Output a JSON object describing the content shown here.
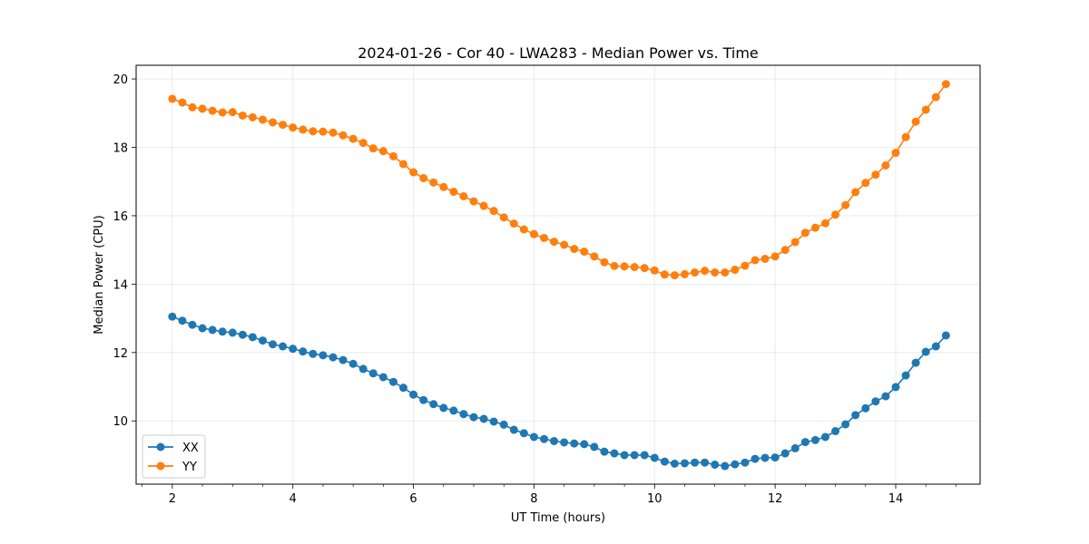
{
  "chart_data": {
    "type": "line",
    "title": "2024-01-26 - Cor 40 - LWA283 - Median Power vs. Time",
    "xlabel": "UT Time (hours)",
    "ylabel": "Median Power (CPU)",
    "xlim": [
      1.4,
      15.4
    ],
    "ylim": [
      8.15,
      20.4
    ],
    "xticks": [
      2,
      4,
      6,
      8,
      10,
      12,
      14
    ],
    "yticks": [
      10,
      12,
      14,
      16,
      18,
      20
    ],
    "grid": true,
    "legend_position": "lower-left",
    "x": [
      2.0,
      2.167,
      2.333,
      2.5,
      2.667,
      2.833,
      3.0,
      3.167,
      3.333,
      3.5,
      3.667,
      3.833,
      4.0,
      4.167,
      4.333,
      4.5,
      4.667,
      4.833,
      5.0,
      5.167,
      5.333,
      5.5,
      5.667,
      5.833,
      6.0,
      6.167,
      6.333,
      6.5,
      6.667,
      6.833,
      7.0,
      7.167,
      7.333,
      7.5,
      7.667,
      7.833,
      8.0,
      8.167,
      8.333,
      8.5,
      8.667,
      8.833,
      9.0,
      9.167,
      9.333,
      9.5,
      9.667,
      9.833,
      10.0,
      10.167,
      10.333,
      10.5,
      10.667,
      10.833,
      11.0,
      11.167,
      11.333,
      11.5,
      11.667,
      11.833,
      12.0,
      12.167,
      12.333,
      12.5,
      12.667,
      12.833,
      13.0,
      13.167,
      13.333,
      13.5,
      13.667,
      13.833,
      14.0,
      14.167,
      14.333,
      14.5,
      14.667,
      14.833
    ],
    "series": [
      {
        "name": "XX",
        "color": "#1f77b4",
        "values": [
          13.05,
          12.93,
          12.81,
          12.71,
          12.66,
          12.61,
          12.58,
          12.52,
          12.45,
          12.35,
          12.24,
          12.18,
          12.11,
          12.03,
          11.96,
          11.92,
          11.86,
          11.78,
          11.67,
          11.52,
          11.39,
          11.28,
          11.14,
          10.97,
          10.77,
          10.61,
          10.49,
          10.38,
          10.3,
          10.2,
          10.11,
          10.06,
          9.98,
          9.89,
          9.74,
          9.64,
          9.53,
          9.47,
          9.41,
          9.37,
          9.34,
          9.32,
          9.24,
          9.1,
          9.05,
          9.0,
          9.0,
          9.0,
          8.92,
          8.81,
          8.75,
          8.76,
          8.78,
          8.78,
          8.72,
          8.68,
          8.73,
          8.78,
          8.89,
          8.92,
          8.93,
          9.05,
          9.2,
          9.38,
          9.44,
          9.53,
          9.7,
          9.9,
          10.17,
          10.37,
          10.57,
          10.72,
          10.99,
          11.33,
          11.7,
          12.02,
          12.18,
          12.5
        ]
      },
      {
        "name": "YY",
        "color": "#ff7f0e",
        "values": [
          19.42,
          19.31,
          19.17,
          19.13,
          19.07,
          19.02,
          19.03,
          18.93,
          18.88,
          18.81,
          18.73,
          18.66,
          18.58,
          18.52,
          18.47,
          18.46,
          18.43,
          18.35,
          18.25,
          18.13,
          17.97,
          17.89,
          17.74,
          17.51,
          17.27,
          17.1,
          16.97,
          16.84,
          16.7,
          16.57,
          16.42,
          16.29,
          16.14,
          15.95,
          15.77,
          15.6,
          15.46,
          15.35,
          15.24,
          15.15,
          15.03,
          14.95,
          14.81,
          14.64,
          14.53,
          14.52,
          14.5,
          14.47,
          14.4,
          14.28,
          14.26,
          14.29,
          14.34,
          14.39,
          14.34,
          14.34,
          14.42,
          14.54,
          14.7,
          14.74,
          14.81,
          15.0,
          15.23,
          15.5,
          15.65,
          15.78,
          16.03,
          16.31,
          16.69,
          16.96,
          17.2,
          17.47,
          17.84,
          18.3,
          18.75,
          19.1,
          19.47,
          19.85
        ]
      }
    ]
  }
}
